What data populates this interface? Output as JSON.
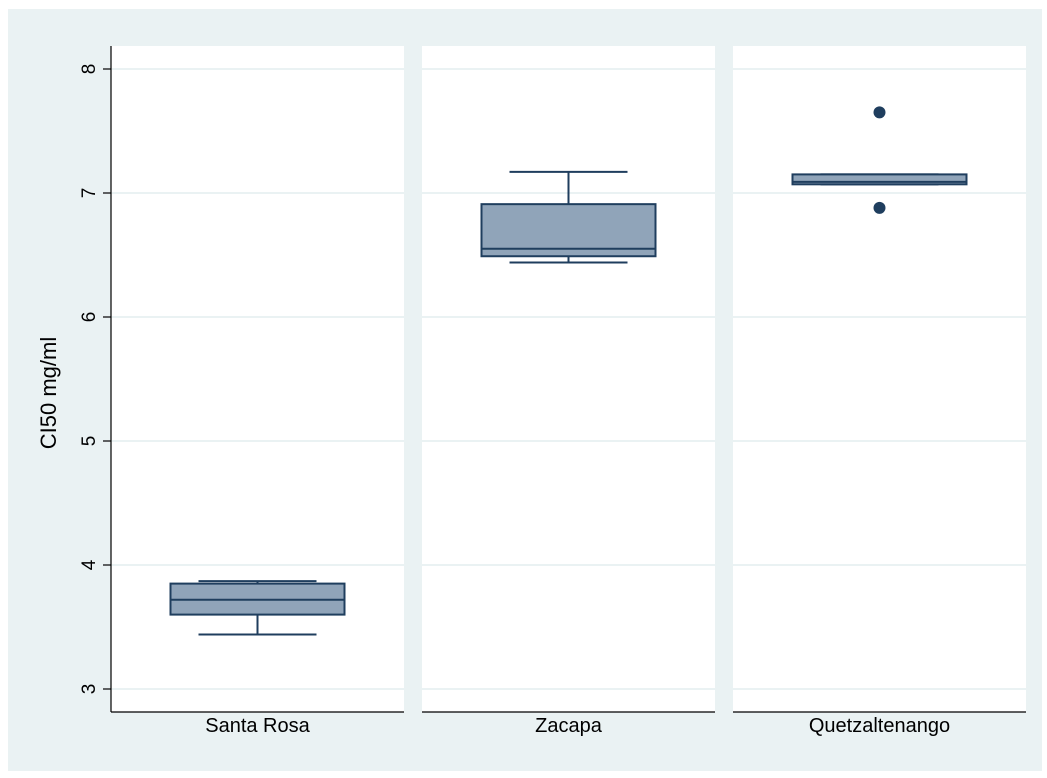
{
  "chart_data": {
    "type": "boxplot",
    "ylabel": "CI50 mg/ml",
    "ylim": [
      3,
      8
    ],
    "yticks": [
      "3",
      "4",
      "5",
      "6",
      "7",
      "8"
    ],
    "grid": true,
    "panels": [
      {
        "label": "Santa Rosa",
        "whisker_low": 3.44,
        "q1": 3.6,
        "median": 3.72,
        "q3": 3.85,
        "whisker_high": 3.87,
        "outliers": []
      },
      {
        "label": "Zacapa",
        "whisker_low": 6.44,
        "q1": 6.49,
        "median": 6.55,
        "q3": 6.91,
        "whisker_high": 7.17,
        "outliers": []
      },
      {
        "label": "Quetzaltenango",
        "whisker_low": 7.07,
        "q1": 7.07,
        "median": 7.09,
        "q3": 7.15,
        "whisker_high": 7.15,
        "outliers": [
          7.65,
          6.88
        ]
      }
    ],
    "colors": {
      "outer_background": "#eaf2f3",
      "panel_background": "#ffffff",
      "grid": "#eaf2f3",
      "box_fill": "#90a4b9",
      "box_stroke": "#1f3e5e",
      "outlier": "#1f3e5e"
    }
  }
}
